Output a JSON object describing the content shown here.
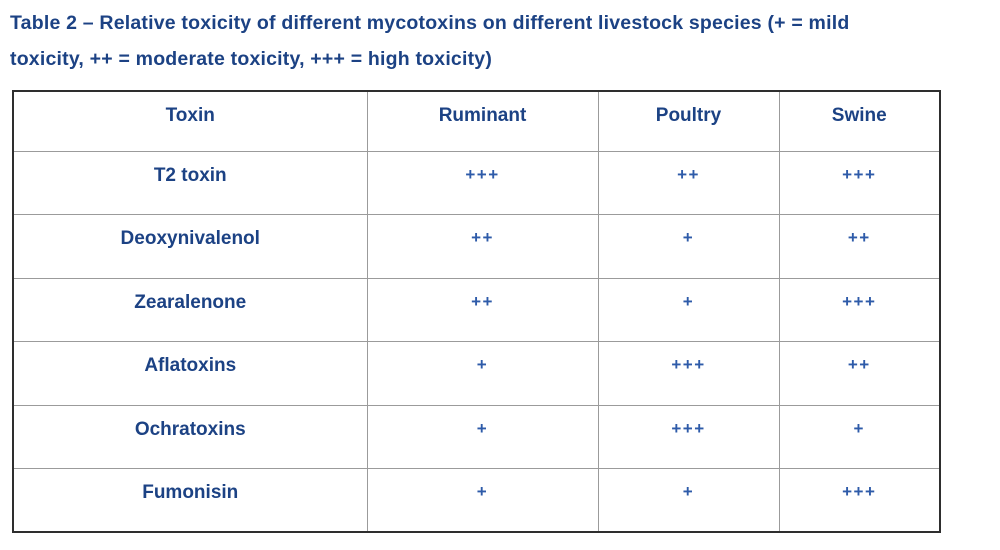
{
  "title": {
    "line1": "Table 2 – Relative toxicity of different mycotoxins on different livestock species (+ = mild",
    "line2": "toxicity, ++ = moderate toxicity, +++ = high toxicity)"
  },
  "table": {
    "columns": [
      "Toxin",
      "Ruminant",
      "Poultry",
      "Swine"
    ],
    "rows": [
      {
        "toxin": "T2 toxin",
        "values": [
          "+++",
          "++",
          "+++"
        ]
      },
      {
        "toxin": "Deoxynivalenol",
        "values": [
          "++",
          "+",
          "++"
        ]
      },
      {
        "toxin": "Zearalenone",
        "values": [
          "++",
          "+",
          "+++"
        ]
      },
      {
        "toxin": "Aflatoxins",
        "values": [
          "+",
          "+++",
          "++"
        ]
      },
      {
        "toxin": "Ochratoxins",
        "values": [
          "+",
          "+++",
          "+"
        ]
      },
      {
        "toxin": "Fumonisin",
        "values": [
          "+",
          "+",
          "+++"
        ]
      }
    ]
  },
  "colors": {
    "heading_navy": "#1c4284",
    "plus_blue": "#2e5ba9",
    "outer_border": "#2e2e2e",
    "inner_border": "#9b9b9b",
    "background": "#ffffff"
  }
}
